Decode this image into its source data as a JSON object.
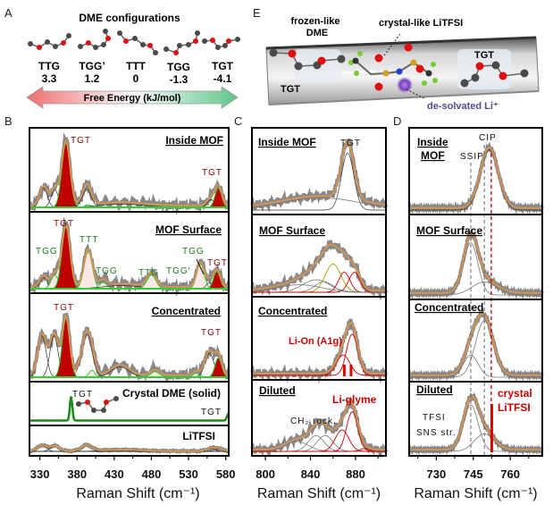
{
  "panel_labels": {
    "a": "A",
    "b": "B",
    "c": "C",
    "d": "D",
    "e": "E"
  },
  "panel_a": {
    "title": "DME configurations",
    "configs": [
      {
        "name": "TTG",
        "energy": "3.3"
      },
      {
        "name": "TGG’",
        "energy": "1.2"
      },
      {
        "name": "TTT",
        "energy": "0"
      },
      {
        "name": "TGG",
        "energy": "-1.3"
      },
      {
        "name": "TGT",
        "energy": "-4.1"
      }
    ],
    "arrow_label": "Free Energy (kJ/mol)"
  },
  "panel_e": {
    "frozen_line1": "frozen-like",
    "frozen_line2": "DME",
    "crystal_label": "crystal-like LiTFSI",
    "tgt_left": "TGT",
    "tgt_right": "TGT",
    "li_label": "de-solvated Li⁺"
  },
  "colors": {
    "tgt_fill": "#c00000",
    "conformer": "#33cc33",
    "fit": "#d9954f",
    "data": "#888888",
    "li": "#cc0000",
    "crystal_dme": "#1a8a1a"
  },
  "chart_data": [
    {
      "id": "B",
      "type": "line",
      "xlabel": "Raman Shift (cm⁻¹)",
      "xlim": [
        316,
        584
      ],
      "ticks": [
        330,
        380,
        430,
        480,
        530,
        580
      ],
      "subpanels": [
        {
          "title": "Inside MOF",
          "labels": [
            "TGT",
            "TGT"
          ],
          "peaks": [
            {
              "x": 335,
              "h": 0.3,
              "w": 5,
              "k": "o"
            },
            {
              "x": 350,
              "h": 0.27,
              "w": 5,
              "k": "o"
            },
            {
              "x": 365,
              "h": 1.0,
              "w": 5.5,
              "k": "t"
            },
            {
              "x": 393,
              "h": 0.28,
              "w": 6,
              "k": "o"
            },
            {
              "x": 395,
              "h": 0.04,
              "w": 4,
              "k": "c"
            },
            {
              "x": 440,
              "h": 0.05,
              "w": 30,
              "k": "o"
            },
            {
              "x": 560,
              "h": 0.12,
              "w": 5,
              "k": "o"
            },
            {
              "x": 570,
              "h": 0.3,
              "w": 4.5,
              "k": "t"
            }
          ]
        },
        {
          "title": "MOF Surface",
          "labels": [
            "TGT",
            "TTT",
            "TGG",
            "TGG",
            "TTG",
            "TGG'",
            "TGG",
            "TGT"
          ],
          "peaks": [
            {
              "x": 335,
              "h": 0.18,
              "w": 5,
              "k": "o"
            },
            {
              "x": 350,
              "h": 0.22,
              "w": 5,
              "k": "c"
            },
            {
              "x": 365,
              "h": 1.0,
              "w": 5.5,
              "k": "t"
            },
            {
              "x": 395,
              "h": 0.6,
              "w": 5.5,
              "k": "c"
            },
            {
              "x": 415,
              "h": 0.1,
              "w": 5,
              "k": "c"
            },
            {
              "x": 440,
              "h": 0.05,
              "w": 25,
              "k": "o"
            },
            {
              "x": 480,
              "h": 0.22,
              "w": 6,
              "k": "c"
            },
            {
              "x": 546,
              "h": 0.4,
              "w": 5,
              "k": "c"
            },
            {
              "x": 558,
              "h": 0.1,
              "w": 4,
              "k": "o"
            },
            {
              "x": 568,
              "h": 0.28,
              "w": 4.5,
              "k": "t"
            }
          ]
        },
        {
          "title": "Concentrated",
          "labels": [
            "TGT",
            "TGT"
          ],
          "peaks": [
            {
              "x": 333,
              "h": 0.6,
              "w": 5.5,
              "k": "o"
            },
            {
              "x": 349,
              "h": 0.6,
              "w": 5.5,
              "k": "o"
            },
            {
              "x": 365,
              "h": 0.85,
              "w": 5,
              "k": "t"
            },
            {
              "x": 393,
              "h": 0.62,
              "w": 7,
              "k": "o"
            },
            {
              "x": 400,
              "h": 0.1,
              "w": 4,
              "k": "c"
            },
            {
              "x": 438,
              "h": 0.15,
              "w": 12,
              "k": "o"
            },
            {
              "x": 485,
              "h": 0.08,
              "w": 6,
              "k": "c"
            },
            {
              "x": 540,
              "h": 0.06,
              "w": 4,
              "k": "c"
            },
            {
              "x": 558,
              "h": 0.35,
              "w": 6,
              "k": "o"
            },
            {
              "x": 570,
              "h": 0.28,
              "w": 4.5,
              "k": "t"
            }
          ]
        },
        {
          "title": "Crystal DME  (solid)",
          "labels": [
            "TGT",
            "TGT"
          ],
          "line_only": true,
          "peaks": [
            {
              "x": 372,
              "h": 1.0,
              "w": 1.6,
              "k": "o"
            },
            {
              "x": 583,
              "h": 0.25,
              "w": 1.6,
              "k": "o"
            }
          ]
        },
        {
          "title": "LiTFSI",
          "labels": [],
          "peaks": [
            {
              "x": 333,
              "h": 0.55,
              "w": 6,
              "k": "o"
            },
            {
              "x": 350,
              "h": 0.5,
              "w": 6,
              "k": "o"
            },
            {
              "x": 393,
              "h": 0.55,
              "w": 7,
              "k": "o"
            },
            {
              "x": 440,
              "h": 0.12,
              "w": 25,
              "k": "o"
            },
            {
              "x": 560,
              "h": 0.22,
              "w": 6,
              "k": "o"
            },
            {
              "x": 570,
              "h": 0.22,
              "w": 6,
              "k": "o"
            }
          ]
        }
      ]
    },
    {
      "id": "C",
      "type": "line",
      "xlabel": "Raman Shift (cm⁻¹)",
      "xlim": [
        788,
        907
      ],
      "ticks": [
        800,
        840,
        880
      ],
      "subpanels": [
        {
          "title": "Inside MOF",
          "labels": [
            "TGT"
          ],
          "peaks": [
            {
              "x": 873,
              "h": 0.85,
              "w": 5.5,
              "k": "o"
            },
            {
              "x": 850,
              "h": 0.18,
              "w": 35,
              "k": "g"
            }
          ]
        },
        {
          "title": "MOF Surface",
          "labels": [],
          "peaks": [
            {
              "x": 845,
              "h": 0.2,
              "w": 12,
              "k": "g"
            },
            {
              "x": 852,
              "h": 0.17,
              "w": 8,
              "k": "g"
            },
            {
              "x": 860,
              "h": 0.45,
              "w": 7,
              "k": "y"
            },
            {
              "x": 870,
              "h": 0.32,
              "w": 5,
              "k": "l"
            },
            {
              "x": 879,
              "h": 0.32,
              "w": 5,
              "k": "l"
            },
            {
              "x": 830,
              "h": 0.12,
              "w": 20,
              "k": "g"
            }
          ]
        },
        {
          "title": "Concentrated",
          "labels": [
            "Li-On (A1g)"
          ],
          "bars": [
            870,
            876
          ],
          "peaks": [
            {
              "x": 869,
              "h": 0.32,
              "w": 6,
              "k": "l"
            },
            {
              "x": 877,
              "h": 0.65,
              "w": 5,
              "k": "l"
            }
          ]
        },
        {
          "title": "Diluted",
          "labels": [
            "Li-glyme",
            "CH₂ rock."
          ],
          "peaks": [
            {
              "x": 828,
              "h": 0.18,
              "w": 10,
              "k": "g"
            },
            {
              "x": 845,
              "h": 0.28,
              "w": 7,
              "k": "g"
            },
            {
              "x": 853,
              "h": 0.28,
              "w": 7,
              "k": "g"
            },
            {
              "x": 868,
              "h": 0.38,
              "w": 6,
              "k": "l"
            },
            {
              "x": 877,
              "h": 0.7,
              "w": 5,
              "k": "l"
            },
            {
              "x": 888,
              "h": 0.05,
              "w": 4,
              "k": "l"
            }
          ]
        }
      ]
    },
    {
      "id": "D",
      "type": "line",
      "xlabel": "Raman Shift (cm⁻¹)",
      "xlim": [
        719,
        773
      ],
      "ticks": [
        730,
        745,
        760
      ],
      "reference_lines": {
        "SSIP": 744,
        "CIP": 749.5,
        "crystal": 752.3
      },
      "subpanels": [
        {
          "title": "Inside MOF",
          "title_lines": [
            "Inside",
            "MOF"
          ],
          "labels": [
            "CIP",
            "SSIP"
          ],
          "peaks": [
            {
              "x": 751.5,
              "h": 0.9,
              "w": 3.6,
              "k": "o"
            }
          ]
        },
        {
          "title": "MOF Surface",
          "labels": [],
          "peaks": [
            {
              "x": 744,
              "h": 0.8,
              "w": 2.9,
              "k": "g"
            },
            {
              "x": 749.5,
              "h": 0.2,
              "w": 5,
              "k": "g"
            }
          ]
        },
        {
          "title": "Concentrated",
          "labels": [],
          "peaks": [
            {
              "x": 744,
              "h": 0.35,
              "w": 3,
              "k": "g"
            },
            {
              "x": 749.5,
              "h": 0.9,
              "w": 3.6,
              "k": "g"
            }
          ]
        },
        {
          "title": "Diluted",
          "labels": [
            "crystal",
            "LiTFSI",
            "TFSI",
            "SNS str."
          ],
          "bars": [
            752.5
          ],
          "peaks": [
            {
              "x": 744,
              "h": 0.85,
              "w": 3,
              "k": "g"
            },
            {
              "x": 749.5,
              "h": 0.32,
              "w": 4,
              "k": "g"
            }
          ]
        }
      ]
    }
  ]
}
